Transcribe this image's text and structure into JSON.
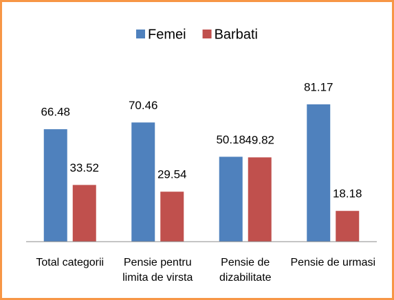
{
  "chart_data": {
    "type": "bar",
    "categories": [
      "Total categorii",
      "Pensie pentru limita de virsta",
      "Pensie de dizabilitate",
      "Pensie de urmasi"
    ],
    "series": [
      {
        "name": "Femei",
        "color": "#4f81bd",
        "values": [
          66.48,
          70.46,
          50.18,
          81.17
        ]
      },
      {
        "name": "Barbati",
        "color": "#c0504d",
        "values": [
          33.52,
          29.54,
          49.82,
          18.18
        ]
      }
    ],
    "legend": "top"
  }
}
